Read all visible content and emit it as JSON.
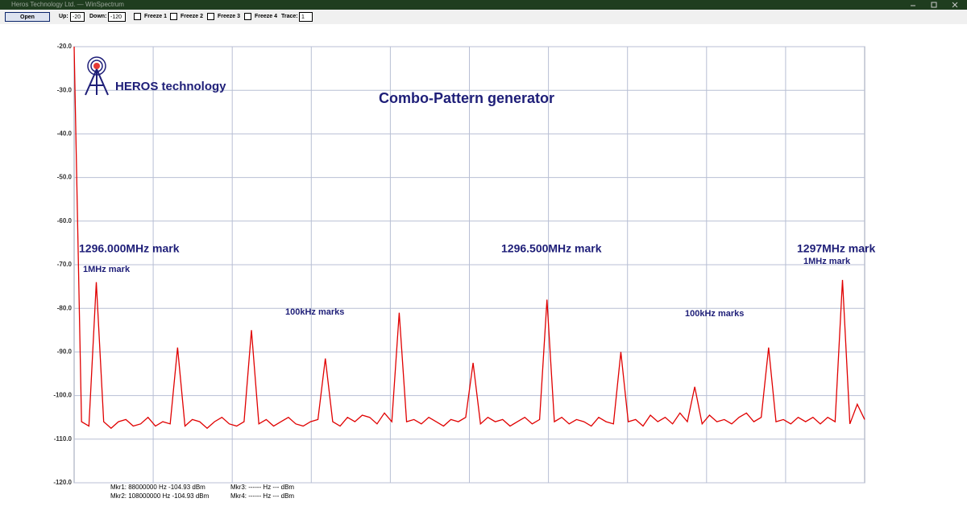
{
  "window": {
    "title": "Heros Technology Ltd. — WinSpectrum"
  },
  "toolbar": {
    "open": "Open",
    "up_label": "Up:",
    "up_value": "-20",
    "down_label": "Down:",
    "down_value": "-120",
    "freezes": [
      "Freeze 1",
      "Freeze 2",
      "Freeze 3",
      "Freeze 4"
    ],
    "trace_label": "Trace:",
    "trace_value": "1"
  },
  "chart_data": {
    "type": "line",
    "logo": "HEROS technology",
    "title": "Combo-Pattern generator",
    "ylim": [
      -120,
      -20
    ],
    "yticks": [
      {
        "value": -20,
        "label": "-20.0"
      },
      {
        "value": -30,
        "label": "-30.0"
      },
      {
        "value": -40,
        "label": "-40.0"
      },
      {
        "value": -50,
        "label": "-50.0"
      },
      {
        "value": -60,
        "label": "-60.0"
      },
      {
        "value": -70,
        "label": "-70.0"
      },
      {
        "value": -80,
        "label": "-80.0"
      },
      {
        "value": -90,
        "label": "-90.0"
      },
      {
        "value": -100,
        "label": "-100.0"
      },
      {
        "value": -110,
        "label": "-110.0"
      },
      {
        "value": -120,
        "label": "-120.0"
      }
    ],
    "xlim": [
      0,
      107
    ],
    "grid": true,
    "series": [
      {
        "color": "#e00000",
        "values": [
          -20,
          -106,
          -107,
          -74,
          -106,
          -107.5,
          -106,
          -105.5,
          -107,
          -106.5,
          -105,
          -107,
          -106,
          -106.5,
          -89,
          -107,
          -105.5,
          -106,
          -107.5,
          -106,
          -105,
          -106.5,
          -107,
          -106,
          -85,
          -106.5,
          -105.5,
          -107,
          -106,
          -105,
          -106.5,
          -107,
          -106,
          -105.5,
          -91.5,
          -106,
          -107,
          -105,
          -106,
          -104.5,
          -105,
          -106.5,
          -104,
          -106,
          -81,
          -106,
          -105.5,
          -106.5,
          -105,
          -106,
          -107,
          -105.5,
          -106,
          -105,
          -92.5,
          -106.5,
          -105,
          -106,
          -105.5,
          -107,
          -106,
          -105,
          -106.5,
          -105.5,
          -78,
          -106,
          -105,
          -106.5,
          -105.5,
          -106,
          -107,
          -105,
          -106,
          -106.5,
          -90,
          -106,
          -105.5,
          -107,
          -104.5,
          -106,
          -105,
          -106.5,
          -104,
          -106,
          -98,
          -106.5,
          -104.5,
          -106,
          -105.5,
          -106.5,
          -105,
          -104,
          -106,
          -105,
          -89,
          -106,
          -105.5,
          -106.5,
          -105,
          -106,
          -105,
          -106.5,
          -105,
          -106,
          -73.5,
          -106.5,
          -102,
          -105.5
        ]
      }
    ],
    "annotations": [
      "1296.000MHz mark",
      "1MHz mark",
      "100kHz marks",
      "1296.500MHz mark",
      "100kHz marks",
      "1297MHz mark",
      "1MHz mark"
    ],
    "markers": [
      "Mkr1: 88000000 Hz -104.93 dBm",
      "Mkr2: 108000000 Hz -104.93 dBm",
      "Mkr3: ------ Hz --- dBm",
      "Mkr4: ------ Hz --- dBm"
    ]
  }
}
